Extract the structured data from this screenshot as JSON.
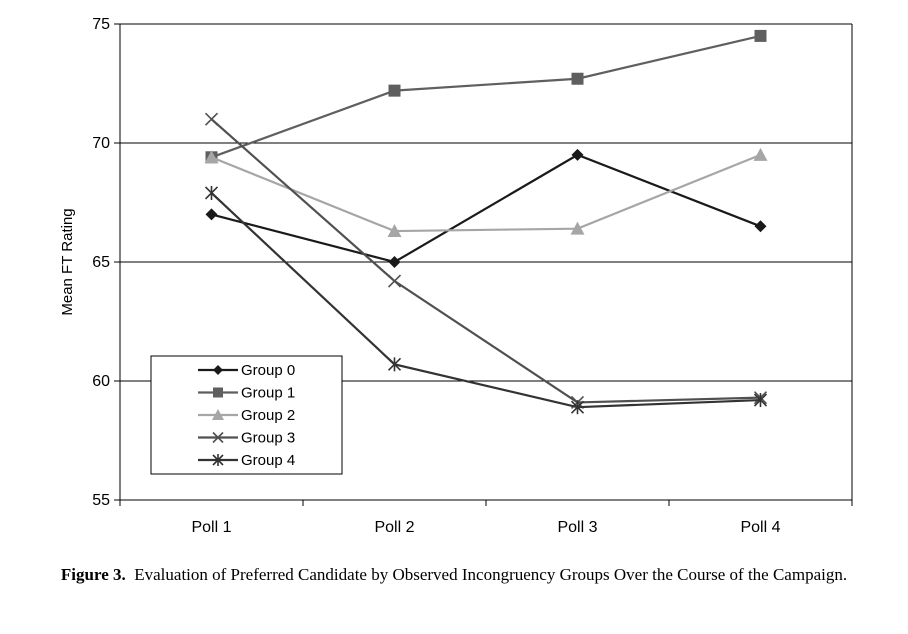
{
  "chart_data": {
    "type": "line",
    "categories": [
      "Poll 1",
      "Poll 2",
      "Poll 3",
      "Poll 4"
    ],
    "ylabel": "Mean FT Rating",
    "ylim": [
      55,
      75
    ],
    "yticks": [
      "55",
      "60",
      "65",
      "70",
      "75"
    ],
    "grid": "horizontal",
    "legend_position": "bottom-left",
    "series": [
      {
        "name": "Group 0",
        "marker": "diamond",
        "color": "#1a1a1a",
        "values": [
          67.0,
          65.0,
          69.5,
          66.5
        ]
      },
      {
        "name": "Group 1",
        "marker": "square",
        "color": "#5f5f5f",
        "values": [
          69.4,
          72.2,
          72.7,
          74.5
        ]
      },
      {
        "name": "Group 2",
        "marker": "triangle",
        "color": "#a6a6a6",
        "values": [
          69.4,
          66.3,
          66.4,
          69.5
        ]
      },
      {
        "name": "Group 3",
        "marker": "x",
        "color": "#505050",
        "values": [
          71.0,
          64.2,
          59.1,
          59.3
        ]
      },
      {
        "name": "Group 4",
        "marker": "asterisk",
        "color": "#333333",
        "values": [
          67.9,
          60.7,
          58.9,
          59.2
        ]
      }
    ]
  },
  "caption": {
    "label": "Figure 3.",
    "text": "Evaluation of Preferred Candidate by Observed Incongruency Groups Over the Course of the Campaign."
  }
}
